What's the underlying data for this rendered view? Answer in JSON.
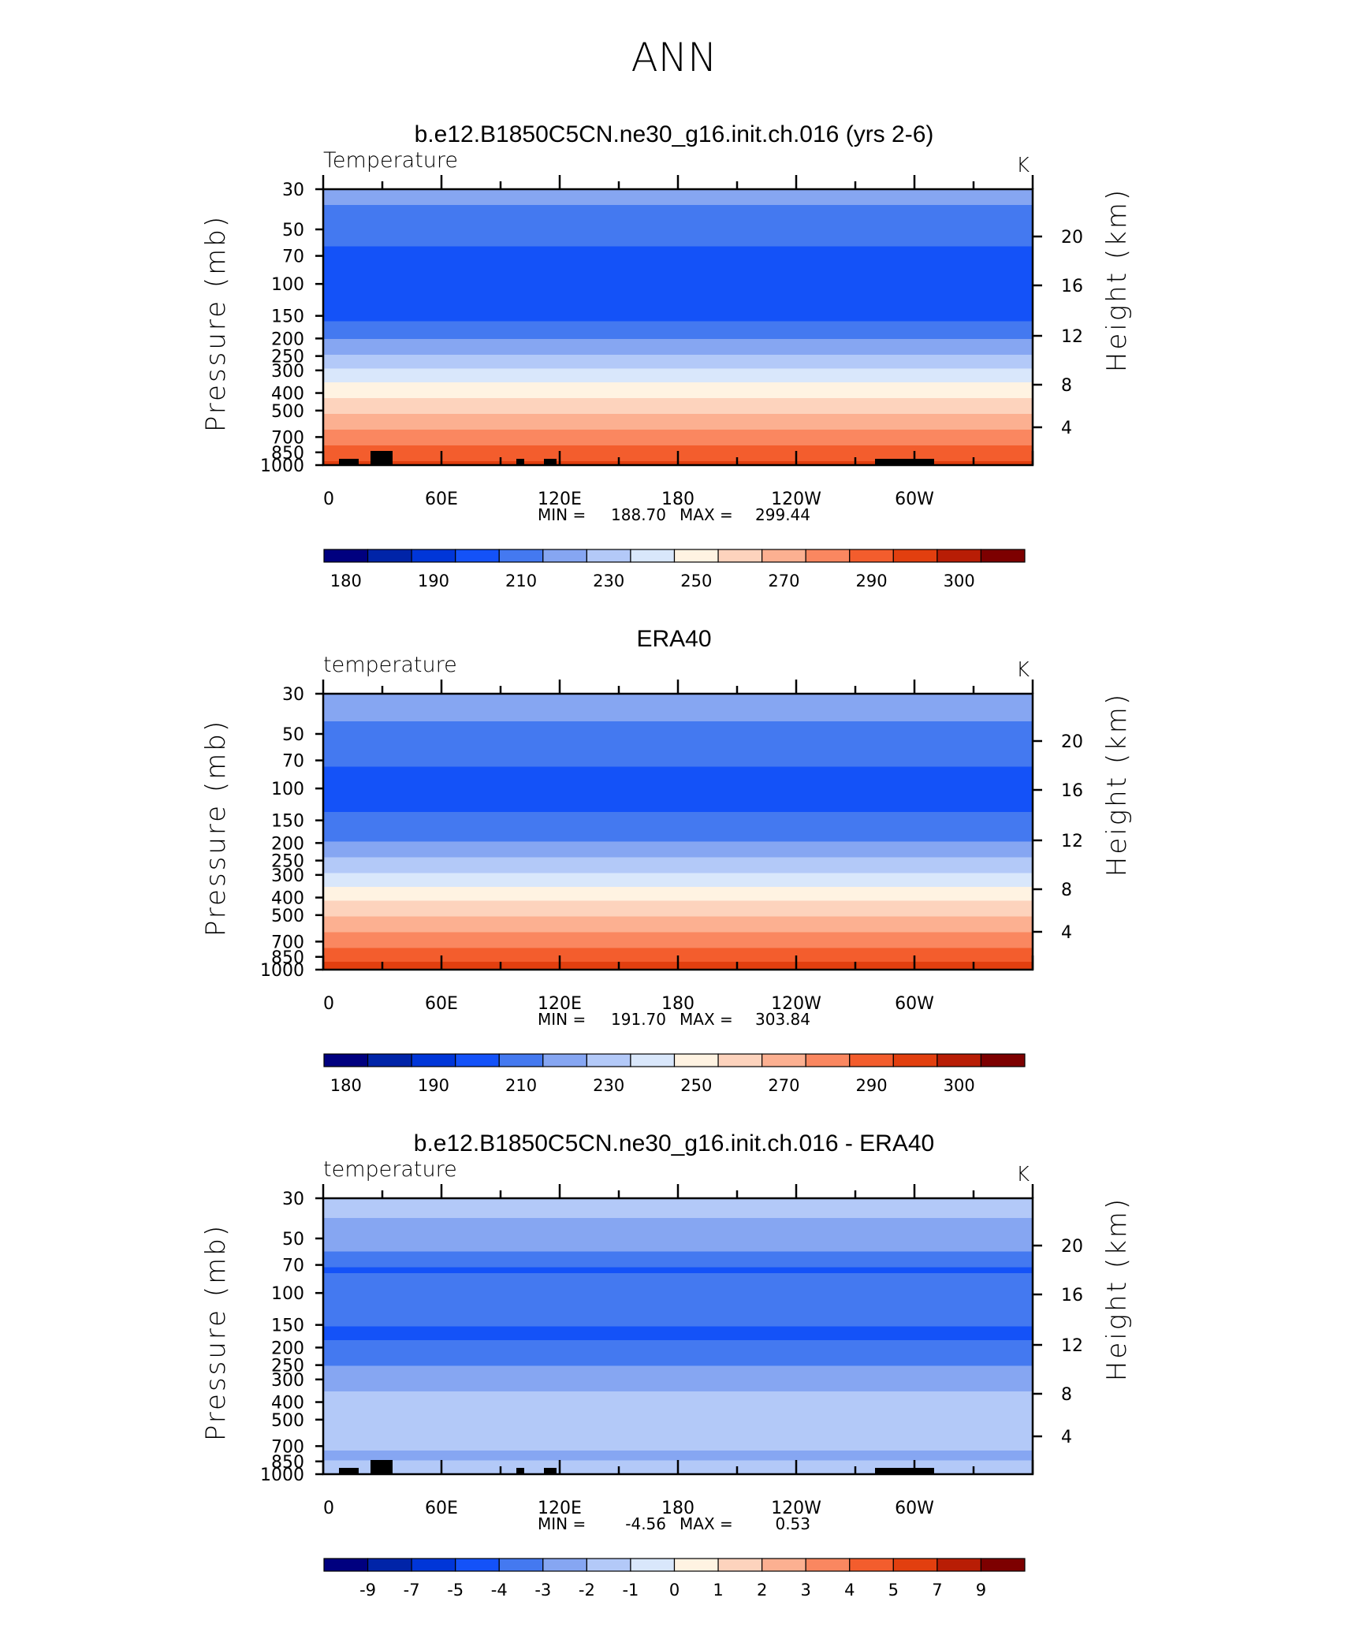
{
  "figure": {
    "title": "ANN"
  },
  "palettes": {
    "absolute": [
      "#00007f",
      "#0024a8",
      "#0036d8",
      "#1452f8",
      "#4479f0",
      "#86a6f2",
      "#b3c9f8",
      "#d9e7fb",
      "#fff3e2",
      "#fdd3bd",
      "#fcb091",
      "#fa8760",
      "#f35d2d",
      "#e23f0f",
      "#b81d05",
      "#7d0000"
    ],
    "difference": [
      "#00007f",
      "#0024a8",
      "#0036d8",
      "#1452f8",
      "#4479f0",
      "#86a6f2",
      "#b3c9f8",
      "#d9e7fb",
      "#fff3e2",
      "#fdd3bd",
      "#fcb091",
      "#fa8760",
      "#f35d2d",
      "#e23f0f",
      "#b81d05",
      "#7d0000"
    ]
  },
  "chart_data": [
    {
      "type": "heatmap",
      "title": "b.e12.B1850C5CN.ne30_g16.init.ch.016 (yrs 2-6)",
      "left_label": "Temperature",
      "units": "K",
      "ylabel": "Pressure (mb)",
      "y2label": "Height (km)",
      "x_ticks": [
        "0",
        "60E",
        "120E",
        "180",
        "120W",
        "60W"
      ],
      "y_ticks": [
        "30",
        "50",
        "70",
        "100",
        "150",
        "200",
        "250",
        "300",
        "400",
        "500",
        "700",
        "850",
        "1000"
      ],
      "y2_ticks": [
        "20",
        "16",
        "12",
        "8",
        "4"
      ],
      "stats": {
        "min_label": "MIN =",
        "min": "188.70",
        "max_label": "MAX =",
        "max": "299.44"
      },
      "colorbar_labels": [
        "180",
        "190",
        "210",
        "230",
        "250",
        "270",
        "290",
        "300"
      ],
      "colorbar_levels": [
        175,
        180,
        185,
        190,
        200,
        210,
        220,
        230,
        240,
        250,
        260,
        270,
        280,
        290,
        295,
        300
      ],
      "profile": [
        {
          "p": 30,
          "t": 212
        },
        {
          "p": 40,
          "t": 209
        },
        {
          "p": 50,
          "t": 205
        },
        {
          "p": 70,
          "t": 197
        },
        {
          "p": 100,
          "t": 193
        },
        {
          "p": 150,
          "t": 197
        },
        {
          "p": 200,
          "t": 209
        },
        {
          "p": 250,
          "t": 221
        },
        {
          "p": 300,
          "t": 231
        },
        {
          "p": 400,
          "t": 247
        },
        {
          "p": 500,
          "t": 258
        },
        {
          "p": 700,
          "t": 275
        },
        {
          "p": 850,
          "t": 284
        },
        {
          "p": 1000,
          "t": 293
        }
      ]
    },
    {
      "type": "heatmap",
      "title": "ERA40",
      "left_label": "temperature",
      "units": "K",
      "ylabel": "Pressure (mb)",
      "y2label": "Height (km)",
      "x_ticks": [
        "0",
        "60E",
        "120E",
        "180",
        "120W",
        "60W"
      ],
      "y_ticks": [
        "30",
        "50",
        "70",
        "100",
        "150",
        "200",
        "250",
        "300",
        "400",
        "500",
        "700",
        "850",
        "1000"
      ],
      "y2_ticks": [
        "20",
        "16",
        "12",
        "8",
        "4"
      ],
      "stats": {
        "min_label": "MIN =",
        "min": "191.70",
        "max_label": "MAX =",
        "max": "303.84"
      },
      "colorbar_labels": [
        "180",
        "190",
        "210",
        "230",
        "250",
        "270",
        "290",
        "300"
      ],
      "colorbar_levels": [
        175,
        180,
        185,
        190,
        200,
        210,
        220,
        230,
        240,
        250,
        260,
        270,
        280,
        290,
        295,
        300
      ],
      "profile": [
        {
          "p": 30,
          "t": 214
        },
        {
          "p": 40,
          "t": 211
        },
        {
          "p": 50,
          "t": 208
        },
        {
          "p": 70,
          "t": 201
        },
        {
          "p": 100,
          "t": 197
        },
        {
          "p": 150,
          "t": 201
        },
        {
          "p": 200,
          "t": 211
        },
        {
          "p": 250,
          "t": 222
        },
        {
          "p": 300,
          "t": 231
        },
        {
          "p": 400,
          "t": 248
        },
        {
          "p": 500,
          "t": 259
        },
        {
          "p": 700,
          "t": 276
        },
        {
          "p": 850,
          "t": 286
        },
        {
          "p": 1000,
          "t": 295
        }
      ]
    },
    {
      "type": "heatmap",
      "title": "b.e12.B1850C5CN.ne30_g16.init.ch.016 - ERA40",
      "left_label": "temperature",
      "units": "K",
      "ylabel": "Pressure (mb)",
      "y2label": "Height (km)",
      "x_ticks": [
        "0",
        "60E",
        "120E",
        "180",
        "120W",
        "60W"
      ],
      "y_ticks": [
        "30",
        "50",
        "70",
        "100",
        "150",
        "200",
        "250",
        "300",
        "400",
        "500",
        "700",
        "850",
        "1000"
      ],
      "y2_ticks": [
        "20",
        "16",
        "12",
        "8",
        "4"
      ],
      "stats": {
        "min_label": "MIN =",
        "min": "-4.56",
        "max_label": "MAX =",
        "max": "0.53"
      },
      "colorbar_labels": [
        "-9",
        "-7",
        "-5",
        "-4",
        "-3",
        "-2",
        "-1",
        "0",
        "1",
        "2",
        "3",
        "4",
        "5",
        "7",
        "9"
      ],
      "colorbar_levels": [
        -10,
        -9,
        -7,
        -5,
        -4,
        -3,
        -2,
        -1,
        0,
        1,
        2,
        3,
        4,
        5,
        7,
        9
      ],
      "profile": [
        {
          "p": 30,
          "t": -1.6
        },
        {
          "p": 50,
          "t": -2.4
        },
        {
          "p": 65,
          "t": -3.3
        },
        {
          "p": 75,
          "t": -4.2
        },
        {
          "p": 90,
          "t": -3.3
        },
        {
          "p": 120,
          "t": -3.6
        },
        {
          "p": 170,
          "t": -4.2
        },
        {
          "p": 230,
          "t": -3.3
        },
        {
          "p": 300,
          "t": -2.4
        },
        {
          "p": 400,
          "t": -1.7
        },
        {
          "p": 500,
          "t": -1.6
        },
        {
          "p": 700,
          "t": -1.8
        },
        {
          "p": 800,
          "t": -2.3
        },
        {
          "p": 900,
          "t": -1.6
        },
        {
          "p": 1000,
          "t": -1.5
        }
      ]
    }
  ]
}
